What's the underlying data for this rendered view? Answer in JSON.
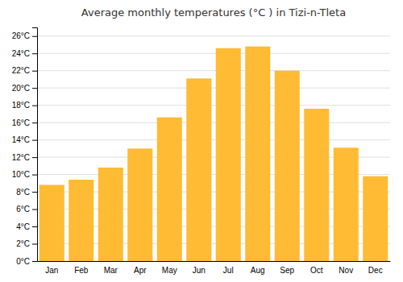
{
  "chart_data": {
    "type": "bar",
    "title": "Average monthly temperatures (°C ) in Tizi-n-Tleta",
    "categories": [
      "Jan",
      "Feb",
      "Mar",
      "Apr",
      "May",
      "Jun",
      "Jul",
      "Aug",
      "Sep",
      "Oct",
      "Nov",
      "Dec"
    ],
    "values": [
      8.8,
      9.4,
      10.8,
      13.0,
      16.6,
      21.1,
      24.6,
      24.8,
      22.0,
      17.6,
      13.1,
      9.8
    ],
    "color": "#FFBB33",
    "ylim": [
      0,
      27
    ],
    "yticks": [
      {
        "value": 0,
        "label": "0°C"
      },
      {
        "value": 2,
        "label": "2°C"
      },
      {
        "value": 4,
        "label": "4°C"
      },
      {
        "value": 6,
        "label": "6°C"
      },
      {
        "value": 8,
        "label": "8°C"
      },
      {
        "value": 10,
        "label": "10°C"
      },
      {
        "value": 12,
        "label": "12°C"
      },
      {
        "value": 14,
        "label": "14°C"
      },
      {
        "value": 16,
        "label": "16°C"
      },
      {
        "value": 18,
        "label": "18°C"
      },
      {
        "value": 20,
        "label": "20°C"
      },
      {
        "value": 22,
        "label": "22°C"
      },
      {
        "value": 24,
        "label": "24°C"
      },
      {
        "value": 26,
        "label": "26°C"
      }
    ],
    "grid": true
  }
}
